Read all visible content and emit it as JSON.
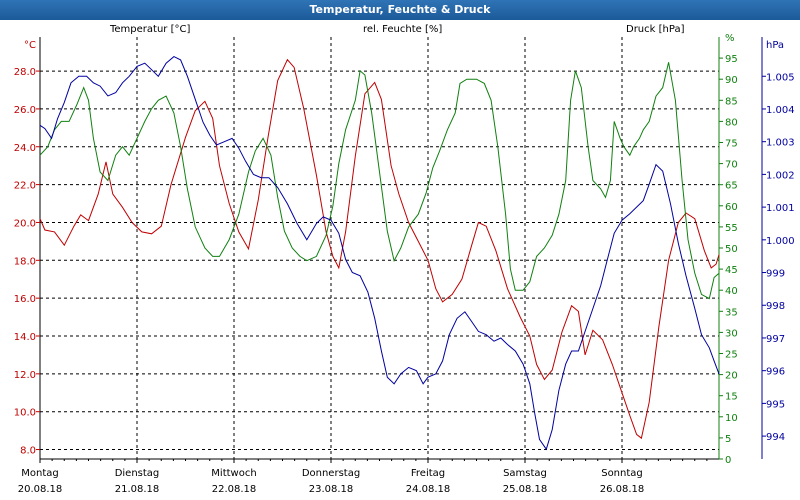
{
  "window_title": "Temperatur, Feuchte & Druck",
  "colors": {
    "temperature": "#c00000",
    "humidity": "#108010",
    "pressure": "#0000a0",
    "title_bar": "#1f5f9e",
    "grid": "#000000"
  },
  "headers": {
    "temperature": "Temperatur [°C]",
    "humidity": "rel. Feuchte [%]",
    "pressure": "Druck [hPa]"
  },
  "chart_data": {
    "type": "line",
    "title": "Temperatur, Feuchte & Druck",
    "x_range": [
      0,
      7
    ],
    "days": [
      {
        "name": "Montag",
        "date": "20.08.18"
      },
      {
        "name": "Dienstag",
        "date": "21.08.18"
      },
      {
        "name": "Mittwoch",
        "date": "22.08.18"
      },
      {
        "name": "Donnerstag",
        "date": "23.08.18"
      },
      {
        "name": "Freitag",
        "date": "24.08.18"
      },
      {
        "name": "Samstag",
        "date": "25.08.18"
      },
      {
        "name": "Sonntag",
        "date": "26.08.18"
      }
    ],
    "axes": {
      "temperature": {
        "unit": "°C",
        "ylim": [
          7.5,
          29.8
        ],
        "ticks": [
          "8.0",
          "10.0",
          "12.0",
          "14.0",
          "16.0",
          "18.0",
          "20.0",
          "22.0",
          "24.0",
          "26.0",
          "28.0"
        ]
      },
      "humidity": {
        "unit": "%",
        "ylim": [
          0,
          100
        ],
        "ticks": [
          "0",
          "5",
          "10",
          "15",
          "20",
          "25",
          "30",
          "35",
          "40",
          "45",
          "50",
          "55",
          "60",
          "65",
          "70",
          "75",
          "80",
          "85",
          "90",
          "95"
        ],
        "top_tick": "%"
      },
      "pressure": {
        "unit": "hPa",
        "ylim": [
          993.3,
          1006.2
        ],
        "ticks": [
          "994",
          "995",
          "996",
          "997",
          "998",
          "999",
          "1.000",
          "1.001",
          "1.002",
          "1.003",
          "1.004",
          "1.005"
        ],
        "top_tick": "hPa"
      }
    },
    "series": [
      {
        "name": "Temperatur [°C]",
        "axis": "temperature",
        "color": "#c00000",
        "points": [
          [
            0,
            20.2
          ],
          [
            0.05,
            19.6
          ],
          [
            0.15,
            19.5
          ],
          [
            0.25,
            18.8
          ],
          [
            0.35,
            19.8
          ],
          [
            0.42,
            20.4
          ],
          [
            0.5,
            20.1
          ],
          [
            0.6,
            21.5
          ],
          [
            0.68,
            23.2
          ],
          [
            0.75,
            21.5
          ],
          [
            0.85,
            20.8
          ],
          [
            0.95,
            20.0
          ],
          [
            1.05,
            19.5
          ],
          [
            1.15,
            19.4
          ],
          [
            1.25,
            19.8
          ],
          [
            1.35,
            22.0
          ],
          [
            1.5,
            24.5
          ],
          [
            1.6,
            25.9
          ],
          [
            1.7,
            26.4
          ],
          [
            1.78,
            25.5
          ],
          [
            1.85,
            23.0
          ],
          [
            1.95,
            21.0
          ],
          [
            2.05,
            19.5
          ],
          [
            2.15,
            18.6
          ],
          [
            2.25,
            21.2
          ],
          [
            2.35,
            24.5
          ],
          [
            2.45,
            27.5
          ],
          [
            2.55,
            28.6
          ],
          [
            2.62,
            28.2
          ],
          [
            2.72,
            26.0
          ],
          [
            2.85,
            22.5
          ],
          [
            2.95,
            19.5
          ],
          [
            3.02,
            18.2
          ],
          [
            3.08,
            17.6
          ],
          [
            3.15,
            19.5
          ],
          [
            3.25,
            23.5
          ],
          [
            3.35,
            26.8
          ],
          [
            3.45,
            27.4
          ],
          [
            3.52,
            26.5
          ],
          [
            3.62,
            23.0
          ],
          [
            3.7,
            21.5
          ],
          [
            3.8,
            20.0
          ],
          [
            3.9,
            19.0
          ],
          [
            4.0,
            18.0
          ],
          [
            4.08,
            16.5
          ],
          [
            4.15,
            15.8
          ],
          [
            4.25,
            16.2
          ],
          [
            4.35,
            17.0
          ],
          [
            4.45,
            18.8
          ],
          [
            4.52,
            20.0
          ],
          [
            4.6,
            19.8
          ],
          [
            4.7,
            18.5
          ],
          [
            4.82,
            16.5
          ],
          [
            4.95,
            15.0
          ],
          [
            5.05,
            14.0
          ],
          [
            5.12,
            12.5
          ],
          [
            5.2,
            11.7
          ],
          [
            5.28,
            12.2
          ],
          [
            5.38,
            14.2
          ],
          [
            5.48,
            15.6
          ],
          [
            5.55,
            15.3
          ],
          [
            5.62,
            13.0
          ],
          [
            5.7,
            14.3
          ],
          [
            5.8,
            13.8
          ],
          [
            5.9,
            12.5
          ],
          [
            6.0,
            11.0
          ],
          [
            6.08,
            9.8
          ],
          [
            6.15,
            8.8
          ],
          [
            6.2,
            8.6
          ],
          [
            6.28,
            10.5
          ],
          [
            6.38,
            14.5
          ],
          [
            6.48,
            18.0
          ],
          [
            6.58,
            20.0
          ],
          [
            6.66,
            20.5
          ],
          [
            6.75,
            20.2
          ],
          [
            6.85,
            18.5
          ],
          [
            6.92,
            17.6
          ],
          [
            6.97,
            17.8
          ],
          [
            7.0,
            18.3
          ]
        ]
      },
      {
        "name": "rel. Feuchte [%]",
        "axis": "humidity",
        "color": "#108010",
        "points": [
          [
            0,
            72
          ],
          [
            0.08,
            74
          ],
          [
            0.15,
            78
          ],
          [
            0.22,
            80
          ],
          [
            0.3,
            80
          ],
          [
            0.38,
            84
          ],
          [
            0.45,
            88
          ],
          [
            0.5,
            85
          ],
          [
            0.55,
            76
          ],
          [
            0.62,
            68
          ],
          [
            0.7,
            66
          ],
          [
            0.78,
            72
          ],
          [
            0.85,
            74
          ],
          [
            0.92,
            72
          ],
          [
            1.0,
            76
          ],
          [
            1.08,
            80
          ],
          [
            1.15,
            83
          ],
          [
            1.22,
            85
          ],
          [
            1.3,
            86
          ],
          [
            1.38,
            82
          ],
          [
            1.45,
            74
          ],
          [
            1.52,
            64
          ],
          [
            1.6,
            55
          ],
          [
            1.7,
            50
          ],
          [
            1.78,
            48
          ],
          [
            1.85,
            48
          ],
          [
            1.95,
            52
          ],
          [
            2.05,
            58
          ],
          [
            2.15,
            68
          ],
          [
            2.22,
            73
          ],
          [
            2.3,
            76
          ],
          [
            2.38,
            72
          ],
          [
            2.45,
            62
          ],
          [
            2.52,
            54
          ],
          [
            2.6,
            50
          ],
          [
            2.68,
            48
          ],
          [
            2.75,
            47
          ],
          [
            2.85,
            48
          ],
          [
            2.95,
            53
          ],
          [
            3.02,
            60
          ],
          [
            3.08,
            70
          ],
          [
            3.15,
            78
          ],
          [
            3.25,
            85
          ],
          [
            3.3,
            92
          ],
          [
            3.35,
            91
          ],
          [
            3.42,
            82
          ],
          [
            3.5,
            68
          ],
          [
            3.58,
            54
          ],
          [
            3.65,
            47
          ],
          [
            3.72,
            50
          ],
          [
            3.8,
            55
          ],
          [
            3.9,
            58
          ],
          [
            3.98,
            63
          ],
          [
            4.05,
            69
          ],
          [
            4.12,
            73
          ],
          [
            4.2,
            78
          ],
          [
            4.28,
            82
          ],
          [
            4.33,
            89
          ],
          [
            4.4,
            90
          ],
          [
            4.5,
            90
          ],
          [
            4.58,
            89
          ],
          [
            4.65,
            85
          ],
          [
            4.72,
            74
          ],
          [
            4.8,
            58
          ],
          [
            4.85,
            45
          ],
          [
            4.9,
            40
          ],
          [
            4.98,
            40
          ],
          [
            5.05,
            42
          ],
          [
            5.12,
            48
          ],
          [
            5.2,
            50
          ],
          [
            5.28,
            53
          ],
          [
            5.35,
            58
          ],
          [
            5.42,
            66
          ],
          [
            5.47,
            85
          ],
          [
            5.52,
            92
          ],
          [
            5.58,
            88
          ],
          [
            5.65,
            74
          ],
          [
            5.7,
            66
          ],
          [
            5.78,
            64
          ],
          [
            5.83,
            62
          ],
          [
            5.88,
            66
          ],
          [
            5.92,
            80
          ],
          [
            5.98,
            76
          ],
          [
            6.02,
            74
          ],
          [
            6.08,
            72
          ],
          [
            6.12,
            74
          ],
          [
            6.18,
            76
          ],
          [
            6.22,
            78
          ],
          [
            6.28,
            80
          ],
          [
            6.35,
            86
          ],
          [
            6.42,
            88
          ],
          [
            6.48,
            94
          ],
          [
            6.55,
            85
          ],
          [
            6.62,
            66
          ],
          [
            6.68,
            52
          ],
          [
            6.75,
            44
          ],
          [
            6.82,
            39
          ],
          [
            6.9,
            38
          ],
          [
            6.95,
            43
          ],
          [
            7.0,
            44
          ]
        ]
      },
      {
        "name": "Druck [hPa]",
        "axis": "pressure",
        "color": "#0000a0",
        "points": [
          [
            0,
            1003.5
          ],
          [
            0.05,
            1003.4
          ],
          [
            0.12,
            1003.1
          ],
          [
            0.18,
            1003.7
          ],
          [
            0.25,
            1004.2
          ],
          [
            0.32,
            1004.8
          ],
          [
            0.4,
            1005.0
          ],
          [
            0.48,
            1005.0
          ],
          [
            0.55,
            1004.8
          ],
          [
            0.62,
            1004.7
          ],
          [
            0.7,
            1004.4
          ],
          [
            0.78,
            1004.5
          ],
          [
            0.85,
            1004.8
          ],
          [
            0.92,
            1005.0
          ],
          [
            1.0,
            1005.3
          ],
          [
            1.08,
            1005.4
          ],
          [
            1.15,
            1005.2
          ],
          [
            1.22,
            1005.0
          ],
          [
            1.3,
            1005.4
          ],
          [
            1.38,
            1005.6
          ],
          [
            1.45,
            1005.5
          ],
          [
            1.52,
            1005.0
          ],
          [
            1.6,
            1004.3
          ],
          [
            1.68,
            1003.6
          ],
          [
            1.75,
            1003.2
          ],
          [
            1.82,
            1002.9
          ],
          [
            1.9,
            1003.0
          ],
          [
            1.98,
            1003.1
          ],
          [
            2.05,
            1002.8
          ],
          [
            2.12,
            1002.4
          ],
          [
            2.2,
            1002.0
          ],
          [
            2.28,
            1001.9
          ],
          [
            2.36,
            1001.9
          ],
          [
            2.45,
            1001.6
          ],
          [
            2.55,
            1001.1
          ],
          [
            2.65,
            1000.5
          ],
          [
            2.75,
            1000.0
          ],
          [
            2.85,
            1000.5
          ],
          [
            2.92,
            1000.7
          ],
          [
            3.0,
            1000.6
          ],
          [
            3.08,
            1000.2
          ],
          [
            3.15,
            999.4
          ],
          [
            3.22,
            999.0
          ],
          [
            3.3,
            998.9
          ],
          [
            3.38,
            998.4
          ],
          [
            3.45,
            997.6
          ],
          [
            3.52,
            996.6
          ],
          [
            3.58,
            995.8
          ],
          [
            3.65,
            995.6
          ],
          [
            3.72,
            995.9
          ],
          [
            3.8,
            996.1
          ],
          [
            3.88,
            996.0
          ],
          [
            3.95,
            995.6
          ],
          [
            4.0,
            995.8
          ],
          [
            4.08,
            995.9
          ],
          [
            4.15,
            996.3
          ],
          [
            4.22,
            997.1
          ],
          [
            4.3,
            997.6
          ],
          [
            4.38,
            997.8
          ],
          [
            4.45,
            997.5
          ],
          [
            4.52,
            997.2
          ],
          [
            4.6,
            997.1
          ],
          [
            4.68,
            996.9
          ],
          [
            4.75,
            997.0
          ],
          [
            4.82,
            996.8
          ],
          [
            4.9,
            996.6
          ],
          [
            4.98,
            996.2
          ],
          [
            5.05,
            995.6
          ],
          [
            5.1,
            994.7
          ],
          [
            5.15,
            993.9
          ],
          [
            5.22,
            993.6
          ],
          [
            5.28,
            994.2
          ],
          [
            5.35,
            995.4
          ],
          [
            5.42,
            996.2
          ],
          [
            5.48,
            996.6
          ],
          [
            5.55,
            996.6
          ],
          [
            5.62,
            997.2
          ],
          [
            5.7,
            997.9
          ],
          [
            5.78,
            998.6
          ],
          [
            5.85,
            999.4
          ],
          [
            5.92,
            1000.2
          ],
          [
            6.0,
            1000.6
          ],
          [
            6.08,
            1000.8
          ],
          [
            6.15,
            1001.0
          ],
          [
            6.22,
            1001.2
          ],
          [
            6.28,
            1001.7
          ],
          [
            6.35,
            1002.3
          ],
          [
            6.42,
            1002.1
          ],
          [
            6.5,
            1001.1
          ],
          [
            6.58,
            999.9
          ],
          [
            6.66,
            998.9
          ],
          [
            6.75,
            997.9
          ],
          [
            6.82,
            997.1
          ],
          [
            6.9,
            996.7
          ],
          [
            6.95,
            996.3
          ],
          [
            7.0,
            995.9
          ]
        ]
      }
    ]
  }
}
